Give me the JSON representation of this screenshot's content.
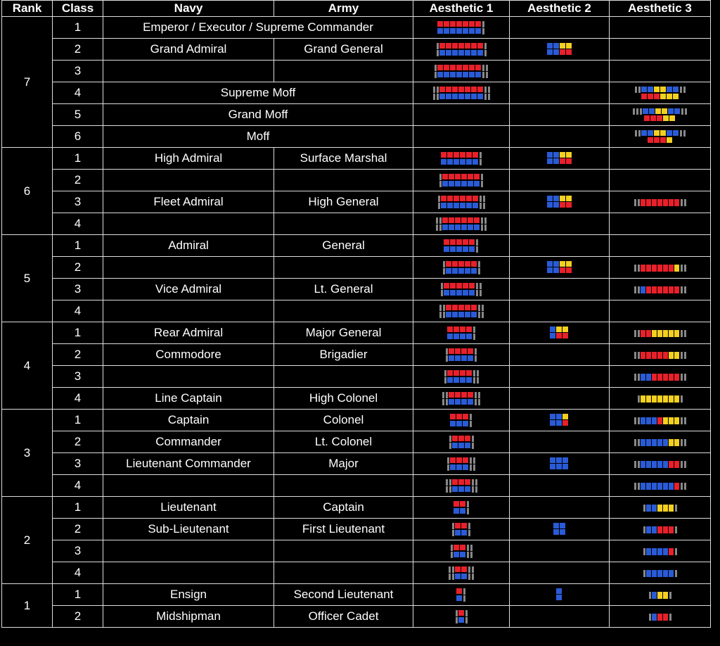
{
  "headers": [
    "Rank",
    "Class",
    "Navy",
    "Army",
    "Aesthetic 1",
    "Aesthetic 2",
    "Aesthetic 3"
  ],
  "rank_groups": [
    {
      "rank": "7",
      "rows": [
        {
          "class": "1",
          "merged": "Emperor / Executor / Supreme Commander",
          "a1": {
            "w": 7,
            "l": 0,
            "r": 1
          }
        },
        {
          "class": "2",
          "navy": "Grand Admiral",
          "army": "Grand General",
          "a1": {
            "w": 7,
            "l": 1,
            "r": 1
          },
          "a2": [
            [
              "b",
              "b",
              "y",
              "y"
            ],
            [
              "b",
              "b",
              "r",
              "r"
            ]
          ]
        },
        {
          "class": "3",
          "navy": "",
          "army": "",
          "a1": {
            "w": 7,
            "l": 1,
            "r": 2
          }
        },
        {
          "class": "4",
          "merged": "Supreme Moff",
          "a1": {
            "w": 7,
            "l": 2,
            "r": 2
          },
          "a3": {
            "top": [
              "b",
              "b",
              "y",
              "y",
              "b",
              "b"
            ],
            "bot": [
              "r",
              "r",
              "r",
              "y",
              "y",
              "y"
            ],
            "l": 2,
            "r": 2
          }
        },
        {
          "class": "5",
          "merged": "Grand Moff",
          "a3": {
            "top": [
              "b",
              "b",
              "y",
              "y",
              "b",
              "b"
            ],
            "bot": [
              "r",
              "r",
              "r",
              "y",
              "y"
            ],
            "l": 3,
            "r": 2
          }
        },
        {
          "class": "6",
          "merged": "Moff",
          "a3": {
            "top": [
              "b",
              "b",
              "y",
              "y",
              "b",
              "b"
            ],
            "bot": [
              "r",
              "r",
              "r",
              "y"
            ],
            "l": 2,
            "r": 2
          }
        }
      ]
    },
    {
      "rank": "6",
      "rows": [
        {
          "class": "1",
          "navy": "High Admiral",
          "army": "Surface Marshal",
          "a1": {
            "w": 6,
            "l": 0,
            "r": 1
          },
          "a2": [
            [
              "b",
              "b",
              "y",
              "y"
            ],
            [
              "b",
              "b",
              "r",
              "r"
            ]
          ]
        },
        {
          "class": "2",
          "navy": "",
          "army": "",
          "a1": {
            "w": 6,
            "l": 1,
            "r": 1
          }
        },
        {
          "class": "3",
          "navy": "Fleet Admiral",
          "army": "High General",
          "a1": {
            "w": 6,
            "l": 1,
            "r": 2
          },
          "a2": [
            [
              "b",
              "b",
              "y",
              "y"
            ],
            [
              "b",
              "b",
              "r",
              "r"
            ]
          ],
          "a3line": {
            "segs": [
              "r",
              "r",
              "r",
              "r",
              "r",
              "r",
              "r"
            ],
            "l": 2,
            "r": 2
          }
        },
        {
          "class": "4",
          "navy": "",
          "army": "",
          "a1": {
            "w": 6,
            "l": 2,
            "r": 2
          }
        }
      ]
    },
    {
      "rank": "5",
      "rows": [
        {
          "class": "1",
          "navy": "Admiral",
          "army": "General",
          "a1": {
            "w": 5,
            "l": 0,
            "r": 1
          }
        },
        {
          "class": "2",
          "navy": "",
          "army": "",
          "a1": {
            "w": 5,
            "l": 1,
            "r": 1
          },
          "a2": [
            [
              "b",
              "b",
              "y",
              "y"
            ],
            [
              "b",
              "b",
              "r",
              "r"
            ]
          ],
          "a3line": {
            "segs": [
              "r",
              "r",
              "r",
              "r",
              "r",
              "r",
              "y"
            ],
            "l": 2,
            "r": 2
          }
        },
        {
          "class": "3",
          "navy": "Vice Admiral",
          "army": "Lt. General",
          "a1": {
            "w": 5,
            "l": 1,
            "r": 2
          },
          "a3line": {
            "segs": [
              "b",
              "r",
              "r",
              "r",
              "r",
              "r",
              "r"
            ],
            "l": 2,
            "r": 2
          }
        },
        {
          "class": "4",
          "navy": "",
          "army": "",
          "a1": {
            "w": 5,
            "l": 2,
            "r": 2
          }
        }
      ]
    },
    {
      "rank": "4",
      "rows": [
        {
          "class": "1",
          "navy": "Rear Admiral",
          "army": "Major General",
          "a1": {
            "w": 4,
            "l": 0,
            "r": 1
          },
          "a2": [
            [
              "b",
              "y",
              "y"
            ],
            [
              "b",
              "r",
              "r"
            ]
          ],
          "a3line": {
            "segs": [
              "r",
              "r",
              "y",
              "y",
              "y",
              "y",
              "y"
            ],
            "l": 2,
            "r": 2
          }
        },
        {
          "class": "2",
          "navy": "Commodore",
          "army": "Brigadier",
          "a1": {
            "w": 4,
            "l": 1,
            "r": 1
          },
          "a3line": {
            "segs": [
              "r",
              "r",
              "r",
              "r",
              "r",
              "y",
              "y"
            ],
            "l": 2,
            "r": 2
          }
        },
        {
          "class": "3",
          "navy": "",
          "army": "",
          "a1": {
            "w": 4,
            "l": 1,
            "r": 2
          },
          "a3line": {
            "segs": [
              "b",
              "b",
              "r",
              "r",
              "r",
              "r",
              "r"
            ],
            "l": 2,
            "r": 2
          }
        },
        {
          "class": "4",
          "navy": "Line Captain",
          "army": "High Colonel",
          "a1": {
            "w": 4,
            "l": 2,
            "r": 2
          },
          "a3line": {
            "segs": [
              "y",
              "y",
              "y",
              "y",
              "y",
              "y",
              "y"
            ],
            "l": 1,
            "r": 1
          }
        }
      ]
    },
    {
      "rank": "3",
      "rows": [
        {
          "class": "1",
          "navy": "Captain",
          "army": "Colonel",
          "a1": {
            "w": 3,
            "l": 0,
            "r": 1
          },
          "a2": [
            [
              "b",
              "b",
              "y"
            ],
            [
              "b",
              "b",
              "r"
            ]
          ],
          "a3line": {
            "segs": [
              "b",
              "b",
              "b",
              "r",
              "y",
              "y",
              "y"
            ],
            "l": 2,
            "r": 2
          }
        },
        {
          "class": "2",
          "navy": "Commander",
          "army": "Lt. Colonel",
          "a1": {
            "w": 3,
            "l": 1,
            "r": 1
          },
          "a3line": {
            "segs": [
              "b",
              "b",
              "b",
              "b",
              "b",
              "y",
              "y"
            ],
            "l": 2,
            "r": 2
          }
        },
        {
          "class": "3",
          "navy": "Lieutenant Commander",
          "army": "Major",
          "a1": {
            "w": 3,
            "l": 1,
            "r": 2
          },
          "a2": [
            [
              "b",
              "b",
              "b"
            ],
            [
              "b",
              "b",
              "b"
            ]
          ],
          "a3line": {
            "segs": [
              "b",
              "b",
              "b",
              "b",
              "b",
              "r",
              "r"
            ],
            "l": 2,
            "r": 2
          }
        },
        {
          "class": "4",
          "navy": "",
          "army": "",
          "a1": {
            "w": 3,
            "l": 2,
            "r": 2
          },
          "a3line": {
            "segs": [
              "b",
              "b",
              "b",
              "b",
              "b",
              "b",
              "r"
            ],
            "l": 2,
            "r": 2
          }
        }
      ]
    },
    {
      "rank": "2",
      "rows": [
        {
          "class": "1",
          "navy": "Lieutenant",
          "army": "Captain",
          "a1": {
            "w": 2,
            "l": 0,
            "r": 1
          },
          "a3line": {
            "segs": [
              "b",
              "b",
              "y",
              "y",
              "y"
            ],
            "l": 1,
            "r": 1
          }
        },
        {
          "class": "2",
          "navy": "Sub-Lieutenant",
          "army": "First Lieutenant",
          "a1": {
            "w": 2,
            "l": 1,
            "r": 1
          },
          "a2": [
            [
              "b",
              "b"
            ],
            [
              "b",
              "b"
            ]
          ],
          "a3line": {
            "segs": [
              "b",
              "b",
              "r",
              "r",
              "r"
            ],
            "l": 1,
            "r": 1
          }
        },
        {
          "class": "3",
          "navy": "",
          "army": "",
          "a1": {
            "w": 2,
            "l": 1,
            "r": 2
          },
          "a3line": {
            "segs": [
              "b",
              "b",
              "b",
              "b",
              "r"
            ],
            "l": 1,
            "r": 1
          }
        },
        {
          "class": "4",
          "navy": "",
          "army": "",
          "a1": {
            "w": 2,
            "l": 2,
            "r": 2
          },
          "a3line": {
            "segs": [
              "b",
              "b",
              "b",
              "b",
              "b"
            ],
            "l": 1,
            "r": 1
          }
        }
      ]
    },
    {
      "rank": "1",
      "rows": [
        {
          "class": "1",
          "navy": "Ensign",
          "army": "Second Lieutenant",
          "a1": {
            "w": 1,
            "l": 0,
            "r": 1
          },
          "a2": [
            [
              "b"
            ],
            [
              "b"
            ]
          ],
          "a3line": {
            "segs": [
              "b",
              "y",
              "y"
            ],
            "l": 1,
            "r": 1
          }
        },
        {
          "class": "2",
          "navy": "Midshipman",
          "army": "Officer Cadet",
          "a1": {
            "w": 1,
            "l": 1,
            "r": 1
          },
          "a3line": {
            "segs": [
              "b",
              "r",
              "r"
            ],
            "l": 1,
            "r": 1
          }
        }
      ]
    }
  ]
}
